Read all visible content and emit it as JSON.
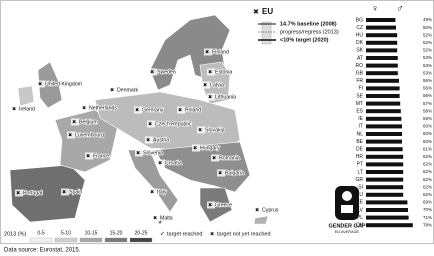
{
  "legend_top": {
    "title": "EU",
    "baseline": "14.7% baseline (2008)",
    "progress": "progress/regress (2013)",
    "target": "<10% target (2020)"
  },
  "map": {
    "countries": [
      "Finland",
      "Sweden",
      "Estonia",
      "Latvia",
      "Lithuania",
      "Denmark",
      "United Kingdom",
      "Ireland",
      "Netherlands",
      "Germany",
      "Poland",
      "Belgium",
      "Luxembourg",
      "Czech Republic",
      "Slovakia",
      "Austria",
      "Hungary",
      "France",
      "Slovenia",
      "Croatia",
      "Romania",
      "Bulgaria",
      "Italy",
      "Portugal",
      "Spain",
      "Malta",
      "Greece",
      "Cyprus"
    ]
  },
  "legend_bottom": {
    "title": "2013 (%)",
    "classes": [
      "0-5",
      "5-10",
      "10-15",
      "15-20",
      "20-25"
    ],
    "reached": "target reached",
    "not_reached": "target not yet reached"
  },
  "gender_gap": {
    "symbols": [
      "♀",
      "♂"
    ],
    "codes": [
      "BG",
      "CZ",
      "HU",
      "DK",
      "SK",
      "AT",
      "RO",
      "GB",
      "FR",
      "FI",
      "SE",
      "MT",
      "ES",
      "IE",
      "IT",
      "NL",
      "BE",
      "DE",
      "HR",
      "PT",
      "LT",
      "GR",
      "SI",
      "LU",
      "EE",
      "LV",
      "PL",
      "CY"
    ],
    "values": [
      49,
      50,
      52,
      52,
      52,
      53,
      53,
      53,
      55,
      56,
      56,
      57,
      58,
      59,
      60,
      60,
      60,
      61,
      62,
      62,
      62,
      62,
      62,
      62,
      69,
      70,
      71,
      78
    ],
    "value_labels": [
      "49%",
      "50%",
      "52%",
      "52%",
      "52%",
      "53%",
      "53%",
      "53%",
      "55%",
      "56%",
      "56%",
      "57%",
      "58%",
      "59%",
      "60%",
      "60%",
      "60%",
      "61%",
      "62%",
      "62%",
      "62%",
      "62%",
      "62%",
      "62%",
      "69%",
      "70%",
      "71%",
      "78%"
    ],
    "title": "GENDER GAP",
    "subtitle": "EU AVERAGE"
  },
  "source": "Data source: Eurostat, 2015."
}
